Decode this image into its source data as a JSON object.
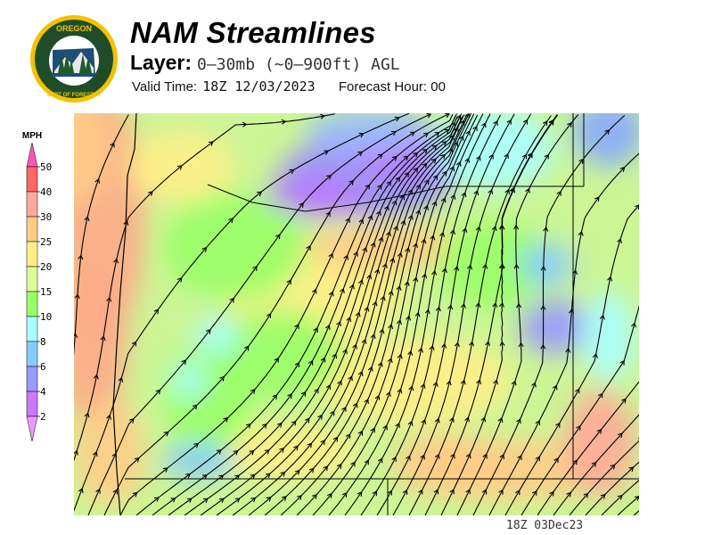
{
  "header": {
    "title": "NAM Streamlines",
    "layer_label": "Layer:",
    "layer_value": "0–30mb (~0–900ft) AGL",
    "valid_time_label": "Valid Time:",
    "valid_time_value": "18Z 12/03/2023",
    "forecast_hour_label": "Forecast Hour:",
    "forecast_hour_value": "00"
  },
  "logo": {
    "text_top": "OREGON",
    "text_bottom": "DEPARTMENT OF FORESTRY"
  },
  "legend": {
    "unit": "MPH",
    "ticks": [
      "50",
      "40",
      "30",
      "25",
      "20",
      "15",
      "10",
      "8",
      "6",
      "4",
      "2"
    ],
    "colors": [
      "#ff6666",
      "#ffaa99",
      "#ffcc88",
      "#ffee88",
      "#ddff99",
      "#99ff66",
      "#aaffff",
      "#88ccff",
      "#9999ff",
      "#cc77ff"
    ],
    "over_color": "#ff55b5",
    "under_color": "#ee99ff"
  },
  "footer": {
    "stamp": "18Z 03Dec23"
  }
}
